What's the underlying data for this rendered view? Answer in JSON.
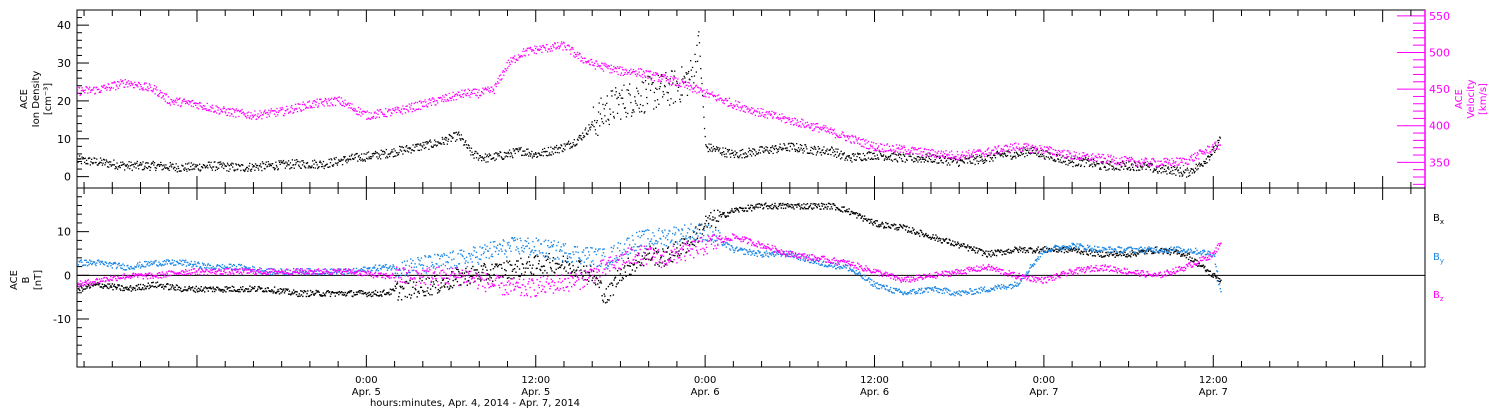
{
  "colors": {
    "black": "#000000",
    "magenta": "#ff00ff",
    "blue": "#1e88e5",
    "background": "#ffffff"
  },
  "chart_data": [
    {
      "type": "scatter",
      "x_axis": {
        "unit": "hours since 2014-04-04 00:00",
        "range": [
          3.5,
          99
        ],
        "major_ticks": [
          {
            "x": 24,
            "label1": "0:00",
            "label2": "Apr. 5"
          },
          {
            "x": 36,
            "label1": "12:00",
            "label2": "Apr. 5"
          },
          {
            "x": 48,
            "label1": "0:00",
            "label2": "Apr. 6"
          },
          {
            "x": 60,
            "label1": "12:00",
            "label2": "Apr. 6"
          },
          {
            "x": 72,
            "label1": "0:00",
            "label2": "Apr. 7"
          },
          {
            "x": 84,
            "label1": "12:00",
            "label2": "Apr. 7"
          }
        ],
        "xlabel": "hours:minutes, Apr.  4, 2014 - Apr.  7, 2014"
      },
      "left_axis": {
        "label_lines": [
          "ACE",
          "Ion Density",
          "[cm⁻³]"
        ],
        "ylim": [
          -3,
          44
        ],
        "ticks": [
          0,
          10,
          20,
          30,
          40
        ]
      },
      "right_axis": {
        "label_lines": [
          "ACE",
          "Velocity",
          "[km/s]"
        ],
        "ylim": [
          315,
          558
        ],
        "ticks": [
          350,
          400,
          450,
          500,
          550
        ]
      },
      "series": [
        {
          "axis": "left",
          "color": "#000000",
          "x": [
            3.5,
            5,
            7,
            9,
            11,
            13,
            15,
            17,
            19,
            21,
            23,
            25,
            27,
            29,
            30.5,
            31.5,
            32.5,
            34,
            35,
            36,
            38,
            39,
            40,
            41,
            42,
            43,
            44,
            45,
            46,
            46.5,
            47.2,
            47.5,
            48,
            50,
            52,
            54,
            56,
            57,
            58,
            60,
            62,
            64,
            66,
            68,
            69,
            70,
            71,
            72,
            73,
            74,
            75,
            76,
            77,
            78,
            79,
            80,
            81,
            82,
            83,
            84,
            84.5
          ],
          "y": [
            4.5,
            4,
            3,
            3,
            2.5,
            3,
            2.5,
            3,
            3.5,
            3.5,
            5,
            6,
            7.5,
            9,
            11,
            6,
            5,
            6,
            7,
            6,
            8,
            10,
            14,
            18,
            20,
            21,
            22,
            23,
            24,
            25,
            28,
            38,
            8,
            6,
            7,
            8,
            7,
            7,
            5,
            6,
            5,
            5,
            4,
            5,
            6,
            6,
            7,
            6,
            5,
            4,
            4,
            3,
            3,
            3,
            3,
            2,
            2,
            1,
            3,
            7,
            10
          ]
        },
        {
          "axis": "right",
          "color": "#ff00ff",
          "x": [
            3.5,
            5,
            7,
            9,
            10,
            12,
            14,
            16,
            18,
            20,
            22,
            24,
            26,
            28,
            30,
            31,
            32,
            33,
            34,
            35,
            36,
            38,
            39,
            40,
            41,
            42,
            43,
            44,
            45,
            46,
            48,
            50,
            52,
            54,
            56,
            58,
            60,
            62,
            64,
            66,
            68,
            70,
            72,
            74,
            76,
            78,
            80,
            82,
            84,
            84.5
          ],
          "y": [
            448,
            450,
            460,
            450,
            435,
            430,
            420,
            415,
            420,
            430,
            435,
            415,
            420,
            430,
            440,
            445,
            445,
            450,
            485,
            500,
            505,
            510,
            495,
            485,
            480,
            475,
            475,
            470,
            465,
            460,
            445,
            430,
            418,
            408,
            398,
            385,
            372,
            368,
            363,
            360,
            365,
            372,
            368,
            360,
            356,
            352,
            350,
            352,
            372,
            375
          ]
        }
      ]
    },
    {
      "type": "scatter",
      "x_axis": {
        "unit": "hours since 2014-04-04 00:00",
        "range": [
          3.5,
          99
        ]
      },
      "left_axis": {
        "label_lines": [
          "ACE",
          "B",
          "[nT]"
        ],
        "ylim": [
          -21,
          20
        ],
        "ticks": [
          -10,
          0,
          10
        ]
      },
      "zero_line": true,
      "series": [
        {
          "name": "Bx",
          "color": "#000000",
          "x": [
            3.5,
            5,
            7,
            9,
            11,
            13,
            15,
            17,
            19,
            21,
            23,
            25,
            27,
            29,
            31,
            33,
            35,
            37,
            39,
            40,
            41,
            42,
            43,
            44,
            45,
            46,
            47,
            48,
            50,
            52,
            54,
            56,
            57,
            58,
            60,
            62,
            64,
            66,
            68,
            70,
            72,
            74,
            76,
            78,
            80,
            82,
            84,
            84.5
          ],
          "y": [
            -3,
            -2,
            -3,
            -2,
            -3,
            -3,
            -3,
            -3,
            -4,
            -4,
            -4,
            -4,
            -3,
            -2,
            0,
            1,
            2,
            3,
            2,
            0,
            -5,
            1,
            3,
            5,
            4,
            6,
            8,
            12,
            15,
            16,
            16,
            16,
            16,
            15,
            12,
            11,
            9,
            7,
            5,
            6,
            6,
            6,
            5,
            5,
            6,
            5,
            0,
            -1
          ]
        },
        {
          "name": "By",
          "color": "#1e88e5",
          "x": [
            3.5,
            5,
            7,
            9,
            11,
            13,
            15,
            17,
            19,
            21,
            23,
            25,
            27,
            29,
            31,
            33,
            35,
            37,
            39,
            41,
            43,
            45,
            47,
            48,
            50,
            52,
            54,
            56,
            58,
            60,
            62,
            64,
            66,
            68,
            70,
            72,
            74,
            76,
            78,
            80,
            82,
            84,
            84.5
          ],
          "y": [
            3,
            3,
            2,
            3,
            3,
            2,
            2,
            1,
            1,
            1,
            1,
            2,
            2,
            3,
            4,
            6,
            7,
            6,
            5,
            4,
            8,
            9,
            10,
            10,
            6,
            5,
            5,
            3,
            2,
            -2,
            -4,
            -3,
            -4,
            -3,
            -2,
            6,
            7,
            6,
            6,
            6,
            6,
            5,
            -4
          ]
        },
        {
          "name": "Bz",
          "color": "#ff00ff",
          "x": [
            3.5,
            5,
            7,
            9,
            11,
            13,
            15,
            17,
            19,
            21,
            23,
            25,
            27,
            29,
            31,
            33,
            35,
            37,
            39,
            41,
            43,
            45,
            47,
            48,
            50,
            52,
            54,
            56,
            58,
            60,
            62,
            64,
            66,
            68,
            70,
            72,
            74,
            76,
            78,
            80,
            82,
            84,
            84.5
          ],
          "y": [
            -2,
            -1,
            0,
            0,
            1,
            1,
            1,
            1,
            1,
            1,
            1,
            0,
            0,
            0,
            0,
            -2,
            -3,
            -2,
            -1,
            2,
            5,
            4,
            6,
            7,
            9,
            7,
            5,
            4,
            3,
            1,
            -1,
            0,
            1,
            2,
            0,
            -1,
            1,
            2,
            1,
            0,
            2,
            5,
            8
          ]
        }
      ],
      "legend": [
        {
          "label": "B",
          "sub": "x",
          "color": "#000000"
        },
        {
          "label": "B",
          "sub": "y",
          "color": "#1e88e5"
        },
        {
          "label": "B",
          "sub": "z",
          "color": "#ff00ff"
        }
      ]
    }
  ]
}
